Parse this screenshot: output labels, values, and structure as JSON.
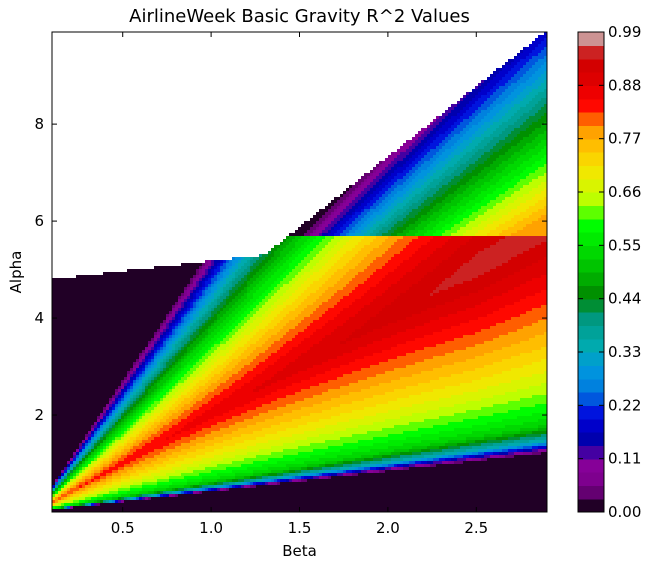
{
  "chart_data": {
    "type": "heatmap",
    "subtype": "filled-contour",
    "title": "AirlineWeek Basic Gravity R^2 Values",
    "xlabel": "Beta",
    "ylabel": "Alpha",
    "xlim": [
      0.1,
      2.9
    ],
    "ylim": [
      0.0,
      9.9
    ],
    "x_ticks": [
      0.5,
      1.0,
      1.5,
      2.0,
      2.5
    ],
    "x_tick_labels": [
      "0.5",
      "1.0",
      "1.5",
      "2.0",
      "2.5"
    ],
    "y_ticks": [
      2,
      4,
      6,
      8
    ],
    "y_tick_labels": [
      "2",
      "4",
      "6",
      "8"
    ],
    "colorbar": {
      "colormap": "nipy_spectral",
      "range": [
        0.0,
        0.99
      ],
      "ticks": [
        0.0,
        0.11,
        0.22,
        0.33,
        0.44,
        0.55,
        0.66,
        0.77,
        0.88,
        0.99
      ],
      "tick_labels": [
        "0.00",
        "0.11",
        "0.22",
        "0.33",
        "0.44",
        "0.55",
        "0.66",
        "0.77",
        "0.88",
        "0.99"
      ]
    },
    "regions": {
      "missing_data": "white, upper-left (high alpha relative to beta)",
      "max_r2_area": "red (~0.88-0.95), beta 1.8-2.9, alpha 2.5-5.7",
      "min_r2_area": "black (~0.00), low alpha along bottom and upper-left edge of the filled region"
    },
    "grid": false,
    "legend": "none"
  }
}
